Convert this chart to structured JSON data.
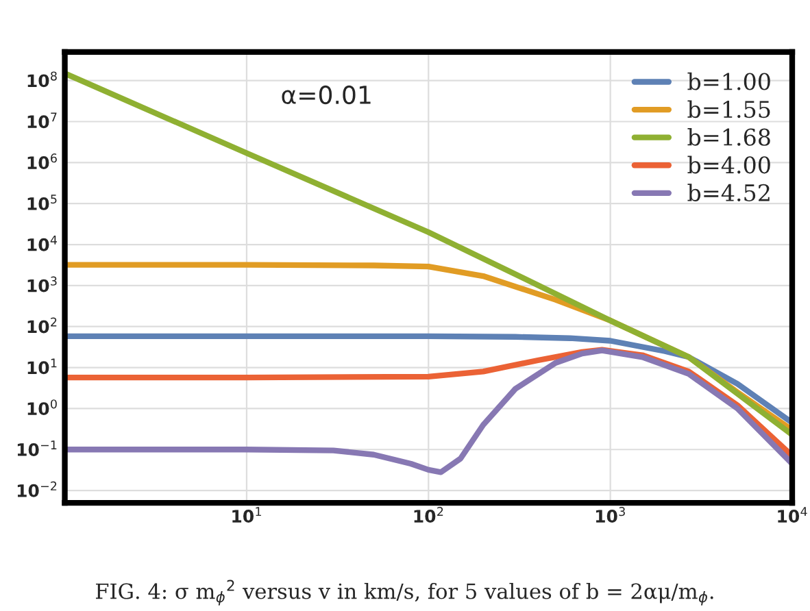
{
  "chart_data": {
    "type": "line",
    "annotations": [
      "α=0.01",
      "FIG. 4: σ m$_{ϕ}$$^{2}$ versus v in km/s, for 5 values of b = 2αμ/m$_{ϕ}$."
    ],
    "log": "xy",
    "grid": true,
    "legend": "top right",
    "xlim": [
      1,
      10000
    ],
    "ylim": [
      0.005,
      500000000
    ],
    "xticks": [
      {
        "value": 10,
        "label": "10$^{1}$"
      },
      {
        "value": 100,
        "label": "10$^{2}$"
      },
      {
        "value": 1000,
        "label": "10$^{3}$"
      },
      {
        "value": 10000,
        "label": "10$^{4}$"
      }
    ],
    "yticks": [
      {
        "value": 0.01,
        "label": "10$^{−2}$"
      },
      {
        "value": 0.1,
        "label": "10$^{−1}$"
      },
      {
        "value": 1,
        "label": "10$^{0}$"
      },
      {
        "value": 10,
        "label": "10$^{1}$"
      },
      {
        "value": 100,
        "label": "10$^{2}$"
      },
      {
        "value": 1000,
        "label": "10$^{3}$"
      },
      {
        "value": 10000,
        "label": "10$^{4}$"
      },
      {
        "value": 100000,
        "label": "10$^{5}$"
      },
      {
        "value": 1000000,
        "label": "10$^{6}$"
      },
      {
        "value": 10000000,
        "label": "10$^{7}$"
      },
      {
        "value": 100000000,
        "label": "10$^{8}$"
      }
    ],
    "series": [
      {
        "name": "b=1.00",
        "color": "#5e81b5",
        "x": [
          1,
          10,
          100,
          300,
          600,
          1000,
          2000,
          2700,
          5000,
          10000
        ],
        "values": [
          58,
          58,
          58,
          56,
          52,
          45,
          25,
          18,
          4,
          0.45
        ]
      },
      {
        "name": "b=1.55",
        "color": "#e19c24",
        "x": [
          1,
          10,
          50,
          100,
          200,
          500,
          1000,
          2700,
          5000,
          10000
        ],
        "values": [
          3200,
          3200,
          3100,
          2900,
          1700,
          450,
          140,
          18,
          2.5,
          0.3
        ]
      },
      {
        "name": "b=1.68",
        "color": "#8fb032",
        "x": [
          1,
          10,
          100,
          300,
          1000,
          2700,
          5000,
          10000
        ],
        "values": [
          150000000,
          1700000,
          20000,
          1900,
          140,
          18,
          2.3,
          0.23
        ]
      },
      {
        "name": "b=4.00",
        "color": "#eb6235",
        "x": [
          1,
          10,
          100,
          200,
          400,
          700,
          900,
          1500,
          2700,
          5000,
          10000
        ],
        "values": [
          5.7,
          5.7,
          6,
          8,
          15,
          24,
          27,
          20,
          8,
          1.2,
          0.07
        ]
      },
      {
        "name": "b=4.52",
        "color": "#8778b3",
        "x": [
          1,
          10,
          30,
          50,
          80,
          100,
          117,
          150,
          200,
          300,
          500,
          700,
          900,
          1500,
          2700,
          5000,
          10000
        ],
        "values": [
          0.1,
          0.1,
          0.095,
          0.075,
          0.045,
          0.032,
          0.028,
          0.06,
          0.4,
          3,
          13,
          22,
          26,
          18,
          7,
          1,
          0.045
        ]
      }
    ]
  }
}
